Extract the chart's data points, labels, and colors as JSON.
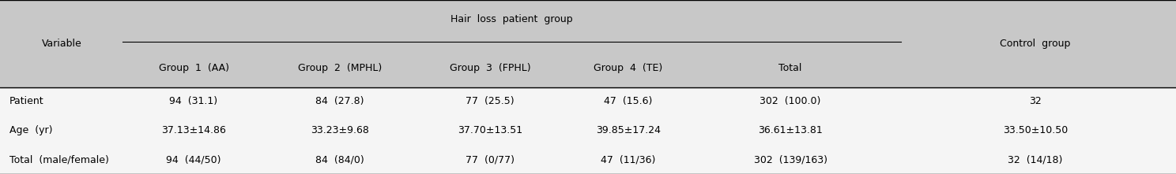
{
  "figsize": [
    14.88,
    2.21
  ],
  "dpi": 100,
  "bg_color": "#c8c8c8",
  "header_bg": "#c8c8c8",
  "white_bg": "#f5f5f5",
  "rows": [
    [
      "Patient",
      "94  (31.1)",
      "84  (27.8)",
      "77  (25.5)",
      "47  (15.6)",
      "302  (100.0)",
      "32"
    ],
    [
      "Age  (yr)",
      "37.13±14.86",
      "33.23±9.68",
      "37.70±13.51",
      "39.85±17.24",
      "36.61±13.81",
      "33.50±10.50"
    ],
    [
      "Total  (male/female)",
      "94  (44/50)",
      "84  (84/0)",
      "77  (0/77)",
      "47  (11/36)",
      "302  (139/163)",
      "32  (14/18)"
    ]
  ],
  "font_size": 9.0,
  "header_font_size": 9.0,
  "font_family": "DejaVu Sans"
}
